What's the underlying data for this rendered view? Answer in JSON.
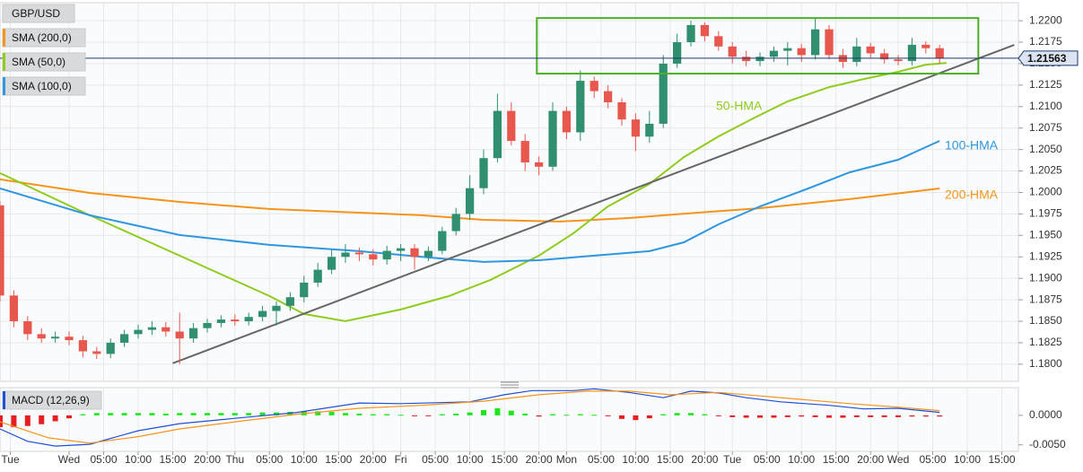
{
  "chart_data": [
    {
      "type": "candlestick",
      "title": "GBP/USD",
      "x": [
        -10,
        -8,
        -6,
        -4,
        -2,
        0,
        2,
        4,
        6,
        8,
        10,
        12,
        14,
        16,
        18,
        20,
        22,
        24,
        26,
        28,
        30,
        32,
        34,
        36,
        38,
        40,
        42,
        44,
        46,
        48,
        50,
        52,
        54,
        56,
        58,
        60,
        62,
        64,
        66,
        68,
        70,
        72,
        74,
        76,
        78,
        80,
        82,
        84,
        86,
        88,
        90,
        92,
        94,
        96,
        98,
        100,
        102,
        104,
        106,
        108,
        110,
        112,
        114,
        116,
        118,
        120,
        122,
        124,
        126
      ],
      "open": [
        1.1985,
        1.188,
        1.185,
        1.1835,
        1.183,
        1.1832,
        1.1828,
        1.1815,
        1.1812,
        1.1825,
        1.1835,
        1.184,
        1.1843,
        1.1838,
        1.183,
        1.1842,
        1.1848,
        1.1852,
        1.185,
        1.1855,
        1.1862,
        1.1868,
        1.1878,
        1.1895,
        1.191,
        1.1925,
        1.193,
        1.1928,
        1.1922,
        1.1932,
        1.1935,
        1.1925,
        1.1932,
        1.1955,
        1.1975,
        1.2005,
        1.204,
        1.2095,
        1.206,
        1.2035,
        1.203,
        1.2095,
        1.207,
        1.213,
        1.2118,
        1.2105,
        1.2085,
        1.2065,
        1.208,
        1.215,
        1.2175,
        1.2195,
        1.2182,
        1.217,
        1.2158,
        1.2153,
        1.2158,
        1.2165,
        1.2168,
        1.216,
        1.219,
        1.216,
        1.2152,
        1.217,
        1.2162,
        1.2155,
        1.2153,
        1.2172,
        1.2168
      ],
      "high": [
        1.199,
        1.1886,
        1.1856,
        1.1842,
        1.1838,
        1.1838,
        1.1833,
        1.182,
        1.183,
        1.184,
        1.1846,
        1.185,
        1.1849,
        1.186,
        1.1848,
        1.1853,
        1.1857,
        1.1858,
        1.186,
        1.1868,
        1.1873,
        1.1884,
        1.1903,
        1.1918,
        1.1933,
        1.194,
        1.1936,
        1.1934,
        1.1938,
        1.194,
        1.194,
        1.1937,
        1.196,
        1.1982,
        1.202,
        1.205,
        1.2115,
        1.2105,
        1.2068,
        1.2042,
        1.2105,
        1.21,
        1.2142,
        1.2135,
        1.2125,
        1.211,
        1.2092,
        1.2095,
        1.216,
        1.2185,
        1.22,
        1.2198,
        1.2188,
        1.2175,
        1.2165,
        1.2163,
        1.217,
        1.2175,
        1.2173,
        1.2203,
        1.2195,
        1.2167,
        1.218,
        1.2174,
        1.2167,
        1.216,
        1.218,
        1.2176,
        1.2172
      ],
      "low": [
        1.1873,
        1.1843,
        1.1828,
        1.1825,
        1.1825,
        1.1822,
        1.1808,
        1.1806,
        1.1807,
        1.182,
        1.183,
        1.1834,
        1.1832,
        1.18,
        1.1825,
        1.1837,
        1.1843,
        1.1845,
        1.1845,
        1.185,
        1.1845,
        1.1862,
        1.1872,
        1.189,
        1.1905,
        1.1918,
        1.192,
        1.1915,
        1.1916,
        1.192,
        1.191,
        1.192,
        1.1928,
        1.195,
        1.1968,
        1.1998,
        1.2035,
        1.2055,
        1.2025,
        1.202,
        1.2025,
        1.2062,
        1.206,
        1.211,
        1.2098,
        1.2078,
        1.2048,
        1.2058,
        1.2075,
        1.2145,
        1.217,
        1.2176,
        1.2165,
        1.215,
        1.2147,
        1.2147,
        1.2152,
        1.2148,
        1.2152,
        1.2155,
        1.2155,
        1.2145,
        1.2147,
        1.2157,
        1.215,
        1.2148,
        1.2148,
        1.2162,
        1.215
      ],
      "close": [
        1.188,
        1.185,
        1.1835,
        1.183,
        1.1832,
        1.1828,
        1.1815,
        1.1812,
        1.1825,
        1.1835,
        1.184,
        1.1843,
        1.1838,
        1.183,
        1.1842,
        1.1848,
        1.1852,
        1.185,
        1.1855,
        1.1862,
        1.1868,
        1.1878,
        1.1895,
        1.191,
        1.1925,
        1.193,
        1.1928,
        1.1922,
        1.1932,
        1.1935,
        1.1925,
        1.1932,
        1.1955,
        1.1975,
        1.2005,
        1.204,
        1.2095,
        1.206,
        1.2035,
        1.203,
        1.2095,
        1.207,
        1.213,
        1.2118,
        1.2105,
        1.2085,
        1.2065,
        1.208,
        1.215,
        1.2175,
        1.2195,
        1.2182,
        1.217,
        1.2158,
        1.2153,
        1.2158,
        1.2165,
        1.2168,
        1.216,
        1.219,
        1.216,
        1.2152,
        1.217,
        1.2162,
        1.2155,
        1.2153,
        1.2172,
        1.2168,
        1.2156
      ],
      "up_color": "#2f8f6e",
      "down_color": "#e8574d",
      "xlim": [
        -10,
        137.4
      ],
      "ylim": [
        1.178,
        1.2221
      ],
      "yticks": [
        {
          "value": 1.18,
          "label": "1.1800"
        },
        {
          "value": 1.1825,
          "label": "1.1825"
        },
        {
          "value": 1.185,
          "label": "1.1850"
        },
        {
          "value": 1.1875,
          "label": "1.1875"
        },
        {
          "value": 1.19,
          "label": "1.1900"
        },
        {
          "value": 1.1925,
          "label": "1.1925"
        },
        {
          "value": 1.195,
          "label": "1.1950"
        },
        {
          "value": 1.1975,
          "label": "1.1975"
        },
        {
          "value": 1.2,
          "label": "1.2000"
        },
        {
          "value": 1.2025,
          "label": "1.2025"
        },
        {
          "value": 1.205,
          "label": "1.2050"
        },
        {
          "value": 1.2075,
          "label": "1.2075"
        },
        {
          "value": 1.21,
          "label": "1.2100"
        },
        {
          "value": 1.2125,
          "label": "1.2125"
        },
        {
          "value": 1.215,
          "label": "1.2150"
        },
        {
          "value": 1.2175,
          "label": "1.2175"
        },
        {
          "value": 1.22,
          "label": "1.2200"
        }
      ],
      "grid": true,
      "current_price": 1.21563,
      "lines": [
        {
          "name": "SMA (200,0)",
          "label": "200-HMA",
          "color": "#f5941d",
          "x": [
            -10,
            3,
            16,
            29,
            42,
            51,
            60,
            71,
            81,
            91,
            100,
            113,
            126
          ],
          "values": [
            1.20152,
            1.19995,
            1.1989,
            1.19807,
            1.19765,
            1.19734,
            1.19681,
            1.19661,
            1.19702,
            1.19765,
            1.19817,
            1.19922,
            1.20047
          ]
        },
        {
          "name": "SMA (50,0)",
          "label": "50-HMA",
          "color": "#8fcc1e",
          "x": [
            -10,
            3,
            16,
            29,
            34,
            40,
            48,
            55,
            61,
            68,
            73,
            78,
            84,
            89,
            94,
            99,
            104,
            110,
            115,
            120,
            124,
            127
          ],
          "values": [
            1.20225,
            1.19734,
            1.19264,
            1.18794,
            1.18585,
            1.18501,
            1.18637,
            1.18794,
            1.18982,
            1.19264,
            1.19525,
            1.19838,
            1.20099,
            1.20413,
            1.20653,
            1.20862,
            1.2106,
            1.21227,
            1.21321,
            1.21405,
            1.21488,
            1.21509
          ]
        },
        {
          "name": "SMA (100,0)",
          "label": "100-HMA",
          "color": "#2f96e0",
          "x": [
            -10,
            3,
            16,
            29,
            42,
            52,
            60,
            68,
            76,
            84,
            89,
            94,
            100,
            107,
            113,
            120,
            126
          ],
          "values": [
            1.20047,
            1.19734,
            1.19504,
            1.19389,
            1.19316,
            1.19243,
            1.19191,
            1.19211,
            1.19264,
            1.19316,
            1.1942,
            1.19629,
            1.19838,
            1.20047,
            1.20235,
            1.20381,
            1.20601
          ]
        }
      ],
      "trendline": {
        "color": "#666666",
        "x": [
          15,
          136.8
        ],
        "values": [
          1.18011,
          1.21718
        ]
      },
      "range_box": {
        "color": "#4caf2a",
        "x": [
          67.7,
          131.6
        ],
        "values": [
          1.21384,
          1.22031
        ]
      }
    },
    {
      "type": "macd",
      "title": "MACD (12,26,9)",
      "x": [
        -10,
        -8,
        -6,
        -4,
        -2,
        0,
        2,
        4,
        6,
        8,
        10,
        12,
        14,
        16,
        18,
        20,
        22,
        24,
        26,
        28,
        30,
        32,
        34,
        36,
        38,
        40,
        42,
        44,
        46,
        48,
        50,
        52,
        54,
        56,
        58,
        60,
        62,
        64,
        66,
        68,
        70,
        72,
        74,
        76,
        78,
        80,
        82,
        84,
        86,
        88,
        90,
        92,
        94,
        96,
        98,
        100,
        102,
        104,
        106,
        108,
        110,
        112,
        114,
        116,
        118,
        120,
        122,
        124,
        126
      ],
      "histogram": [
        -0.002,
        -0.002,
        -0.0018,
        -0.0015,
        -0.001,
        -0.0005,
        0.0002,
        0.0004,
        0.0004,
        0.0004,
        0.0004,
        0.0004,
        0.0003,
        0.0004,
        0.0004,
        0.0004,
        0.0004,
        0.0004,
        0.0004,
        0.0005,
        0.0005,
        0.0006,
        0.0007,
        0.0007,
        0.0006,
        0.0004,
        0.0003,
        0.0002,
        0.0002,
        0.0001,
        -0.0001,
        -0.0001,
        0.0002,
        0.0003,
        0.0005,
        0.0009,
        0.0012,
        0.0008,
        0.0003,
        -0.0002,
        0.0002,
        0.0001,
        0.0002,
        0.0001,
        -0.0001,
        -0.0006,
        -0.0008,
        -0.0005,
        0.0002,
        0.0004,
        0.0004,
        0.0002,
        -0.0001,
        -0.0003,
        -0.0004,
        -0.0004,
        -0.0004,
        -0.0003,
        -0.0002,
        -0.0003,
        -0.0004,
        -0.0004,
        -0.0003,
        -0.0003,
        -0.0003,
        -0.0003,
        -0.0002,
        -0.0002,
        -0.0002
      ],
      "positive_color": "#1ee61e",
      "negative_color": "#e61e1e",
      "series": [
        {
          "color": "#1f4fd6",
          "x": [
            -10,
            -6,
            -2,
            3,
            10,
            16,
            24,
            33,
            42,
            48,
            58,
            63,
            67,
            73,
            76,
            81,
            86,
            90,
            94,
            98,
            103,
            110,
            115,
            120,
            126
          ],
          "values": [
            -0.0023,
            -0.0044,
            -0.0052,
            -0.0049,
            -0.0026,
            -0.0014,
            -0.0005,
            0.0005,
            0.0021,
            0.002,
            0.0023,
            0.0035,
            0.0042,
            0.0042,
            0.0045,
            0.0039,
            0.003,
            0.0041,
            0.0038,
            0.003,
            0.0023,
            0.0017,
            0.0011,
            0.0012,
            0.0005
          ]
        },
        {
          "color": "#f5941d",
          "x": [
            -10,
            -3,
            3,
            10,
            16,
            24,
            33,
            42,
            51,
            60,
            68,
            75,
            81,
            87,
            94,
            100,
            107,
            113,
            120,
            126
          ],
          "values": [
            -0.0011,
            -0.0038,
            -0.0047,
            -0.0036,
            -0.0023,
            -0.0011,
            0.0002,
            0.0012,
            0.0017,
            0.0024,
            0.0035,
            0.0041,
            0.0041,
            0.0035,
            0.0039,
            0.0033,
            0.0026,
            0.002,
            0.0014,
            0.0008
          ]
        }
      ],
      "xlim": [
        -10,
        137.4
      ],
      "ylim": [
        -0.0061,
        0.0047
      ],
      "yticks": [
        {
          "value": 0,
          "label": "0.0000"
        },
        {
          "value": -0.005,
          "label": "-0.0050"
        }
      ],
      "xticks": [
        {
          "value": -8.5,
          "label": "Tue"
        },
        {
          "value": 0,
          "label": "Wed"
        },
        {
          "value": 5,
          "label": "05:00"
        },
        {
          "value": 10,
          "label": "10:00"
        },
        {
          "value": 15,
          "label": "15:00"
        },
        {
          "value": 20,
          "label": "20:00"
        },
        {
          "value": 24,
          "label": "Thu"
        },
        {
          "value": 29,
          "label": "05:00"
        },
        {
          "value": 34,
          "label": "10:00"
        },
        {
          "value": 39,
          "label": "15:00"
        },
        {
          "value": 44,
          "label": "20:00"
        },
        {
          "value": 48,
          "label": "Fri"
        },
        {
          "value": 53,
          "label": "05:00"
        },
        {
          "value": 58,
          "label": "10:00"
        },
        {
          "value": 63,
          "label": "15:00"
        },
        {
          "value": 68,
          "label": "20:00"
        },
        {
          "value": 72,
          "label": "Mon"
        },
        {
          "value": 77,
          "label": "05:00"
        },
        {
          "value": 82,
          "label": "10:00"
        },
        {
          "value": 87,
          "label": "15:00"
        },
        {
          "value": 92,
          "label": "20:00"
        },
        {
          "value": 96,
          "label": "Tue"
        },
        {
          "value": 101,
          "label": "05:00"
        },
        {
          "value": 106,
          "label": "10:00"
        },
        {
          "value": 111,
          "label": "15:00"
        },
        {
          "value": 116,
          "label": "20:00"
        },
        {
          "value": 120,
          "label": "Wed"
        },
        {
          "value": 125,
          "label": "05:00"
        },
        {
          "value": 130,
          "label": "10:00"
        },
        {
          "value": 135,
          "label": "15:00"
        }
      ]
    }
  ]
}
